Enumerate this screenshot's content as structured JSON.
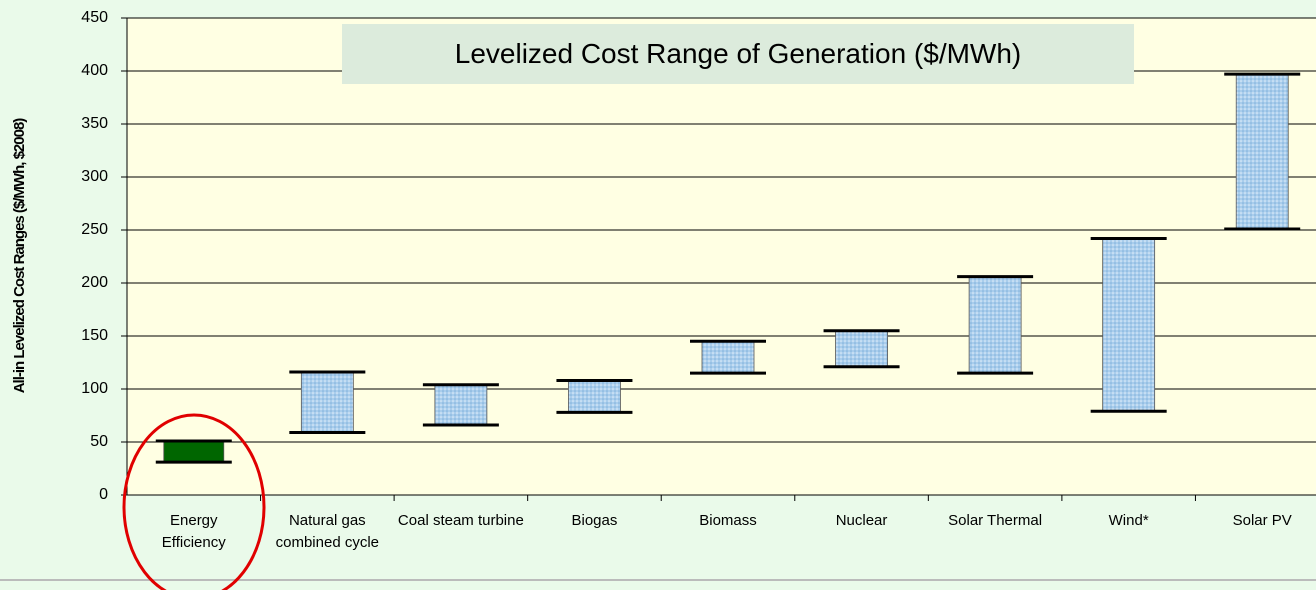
{
  "chart_data": {
    "type": "range-bar",
    "title": "Levelized Cost Range of Generation ($/MWh)",
    "y_label": "All-in Levelized Cost Ranges ($/MWh, $2008)",
    "categories": [
      "Energy Efficiency",
      "Natural gas combined cycle",
      "Coal steam turbine",
      "Biogas",
      "Biomass",
      "Nuclear",
      "Solar Thermal",
      "Wind*",
      "Solar PV"
    ],
    "low": [
      31,
      59,
      66,
      78,
      115,
      121,
      115,
      79,
      251
    ],
    "high": [
      51,
      116,
      104,
      108,
      145,
      155,
      206,
      242,
      397
    ],
    "colors": [
      "#006600",
      "#a9cdec",
      "#a9cdec",
      "#a9cdec",
      "#a9cdec",
      "#a9cdec",
      "#a9cdec",
      "#a9cdec",
      "#a9cdec"
    ],
    "ylim": [
      0,
      450
    ],
    "yticks": [
      0,
      50,
      100,
      150,
      200,
      250,
      300,
      350,
      400,
      450
    ],
    "grid": true
  }
}
